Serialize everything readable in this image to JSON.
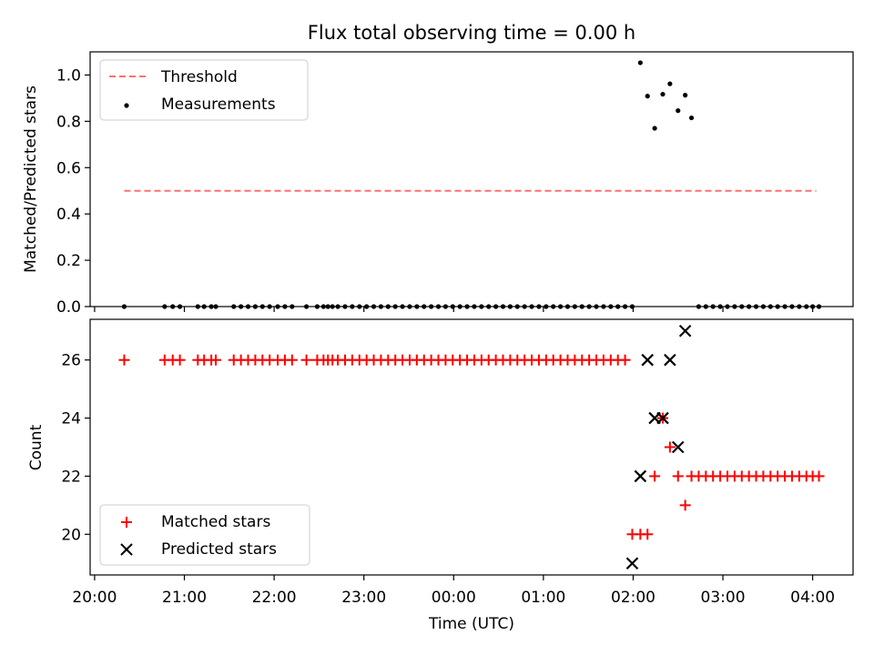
{
  "chart_data": [
    {
      "type": "scatter",
      "title": "Flux total observing time = 0.00 h",
      "xlabel": "",
      "ylabel": "Matched/Predicted stars",
      "ylim": [
        0,
        1.1
      ],
      "yticks": [
        "0.0",
        "0.2",
        "0.4",
        "0.6",
        "0.8",
        "1.0"
      ],
      "ytick_values": [
        0,
        0.2,
        0.4,
        0.6,
        0.8,
        1.0
      ],
      "threshold": {
        "name": "Threshold",
        "value": 0.5,
        "x_start": 20.33,
        "x_end": 28.04,
        "color": "#ff7070"
      },
      "legend": {
        "placement": "upper-left",
        "entries": [
          "Threshold",
          "Measurements"
        ]
      },
      "series": [
        {
          "name": "Measurements",
          "color": "#000000",
          "x": [
            20.33,
            20.78,
            20.87,
            20.95,
            21.15,
            21.22,
            21.3,
            21.35,
            21.55,
            21.63,
            21.71,
            21.79,
            21.87,
            21.95,
            22.04,
            22.12,
            22.2,
            22.36,
            22.48,
            22.55,
            22.6,
            22.65,
            22.71,
            22.79,
            22.87,
            22.95,
            23.03,
            23.11,
            23.19,
            23.27,
            23.35,
            23.43,
            23.51,
            23.59,
            23.67,
            23.75,
            23.83,
            23.91,
            23.99,
            24.07,
            24.15,
            24.23,
            24.31,
            24.39,
            24.47,
            24.55,
            24.63,
            24.71,
            24.79,
            24.87,
            24.95,
            25.03,
            25.11,
            25.19,
            25.27,
            25.35,
            25.43,
            25.51,
            25.59,
            25.67,
            25.75,
            25.83,
            25.91,
            25.99,
            26.08,
            26.16,
            26.24,
            26.33,
            26.41,
            26.5,
            26.58,
            26.65,
            26.73,
            26.81,
            26.89,
            26.97,
            27.05,
            27.13,
            27.21,
            27.29,
            27.37,
            27.45,
            27.53,
            27.61,
            27.69,
            27.77,
            27.85,
            27.93,
            28.0,
            28.07
          ],
          "y": [
            0,
            0,
            0,
            0,
            0,
            0,
            0,
            0,
            0,
            0,
            0,
            0,
            0,
            0,
            0,
            0,
            0,
            0,
            0,
            0,
            0,
            0,
            0,
            0,
            0,
            0,
            0,
            0,
            0,
            0,
            0,
            0,
            0,
            0,
            0,
            0,
            0,
            0,
            0,
            0,
            0,
            0,
            0,
            0,
            0,
            0,
            0,
            0,
            0,
            0,
            0,
            0,
            0,
            0,
            0,
            0,
            0,
            0,
            0,
            0,
            0,
            0,
            0,
            0,
            1.053,
            0.909,
            0.77,
            0.917,
            0.962,
            0.846,
            0.913,
            0.815,
            0,
            0,
            0,
            0,
            0,
            0,
            0,
            0,
            0,
            0,
            0,
            0,
            0,
            0,
            0,
            0,
            0,
            0
          ]
        }
      ]
    },
    {
      "type": "scatter",
      "title": "",
      "xlabel": "Time (UTC)",
      "ylabel": "Count",
      "xlim": [
        19.95,
        28.45
      ],
      "ylim": [
        18.6,
        27.4
      ],
      "xticks": [
        "20:00",
        "21:00",
        "22:00",
        "23:00",
        "00:00",
        "01:00",
        "02:00",
        "03:00",
        "04:00"
      ],
      "xtick_values": [
        20,
        21,
        22,
        23,
        24,
        25,
        26,
        27,
        28
      ],
      "yticks": [
        "20",
        "22",
        "24",
        "26"
      ],
      "ytick_values": [
        20,
        22,
        24,
        26
      ],
      "legend": {
        "placement": "lower-left",
        "entries": [
          "Matched stars",
          "Predicted stars"
        ]
      },
      "series": [
        {
          "name": "Matched stars",
          "marker": "plus",
          "color": "#ff0000",
          "x": [
            20.33,
            20.78,
            20.87,
            20.95,
            21.15,
            21.22,
            21.3,
            21.35,
            21.55,
            21.63,
            21.71,
            21.79,
            21.87,
            21.95,
            22.04,
            22.12,
            22.2,
            22.36,
            22.48,
            22.55,
            22.6,
            22.65,
            22.71,
            22.79,
            22.87,
            22.95,
            23.03,
            23.11,
            23.19,
            23.27,
            23.35,
            23.43,
            23.51,
            23.59,
            23.67,
            23.75,
            23.83,
            23.91,
            23.99,
            24.07,
            24.15,
            24.23,
            24.31,
            24.39,
            24.47,
            24.55,
            24.63,
            24.71,
            24.79,
            24.87,
            24.95,
            25.03,
            25.11,
            25.19,
            25.27,
            25.35,
            25.43,
            25.51,
            25.59,
            25.67,
            25.75,
            25.83,
            25.91,
            25.99,
            26.08,
            26.16,
            26.24,
            26.33,
            26.41,
            26.5,
            26.58,
            26.65,
            26.73,
            26.81,
            26.89,
            26.97,
            27.05,
            27.13,
            27.21,
            27.29,
            27.37,
            27.45,
            27.53,
            27.61,
            27.69,
            27.77,
            27.85,
            27.93,
            28.0,
            28.07
          ],
          "y": [
            26,
            26,
            26,
            26,
            26,
            26,
            26,
            26,
            26,
            26,
            26,
            26,
            26,
            26,
            26,
            26,
            26,
            26,
            26,
            26,
            26,
            26,
            26,
            26,
            26,
            26,
            26,
            26,
            26,
            26,
            26,
            26,
            26,
            26,
            26,
            26,
            26,
            26,
            26,
            26,
            26,
            26,
            26,
            26,
            26,
            26,
            26,
            26,
            26,
            26,
            26,
            26,
            26,
            26,
            26,
            26,
            26,
            26,
            26,
            26,
            26,
            26,
            26,
            20,
            20,
            20,
            22,
            24,
            23,
            22,
            21,
            22,
            22,
            22,
            22,
            22,
            22,
            22,
            22,
            22,
            22,
            22,
            22,
            22,
            22,
            22,
            22,
            22,
            22,
            22
          ]
        },
        {
          "name": "Predicted stars",
          "marker": "x",
          "color": "#000000",
          "x": [
            25.99,
            26.08,
            26.16,
            26.24,
            26.33,
            26.41,
            26.5,
            26.58
          ],
          "y": [
            19,
            22,
            26,
            24,
            24,
            26,
            23,
            27
          ]
        }
      ]
    }
  ]
}
